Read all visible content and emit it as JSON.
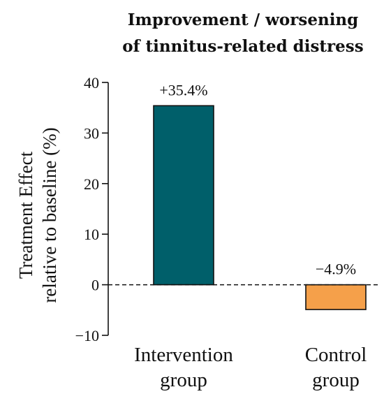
{
  "chart_data": {
    "type": "bar",
    "title_lines": [
      "Improvement / worsening",
      "of tinnitus-related distress"
    ],
    "ylabel_lines": [
      "Treatment Effect",
      "relative to baseline (%)"
    ],
    "ylim": [
      -10,
      40
    ],
    "yticks": [
      -10,
      0,
      10,
      20,
      30,
      40
    ],
    "ytick_labels": [
      "−10",
      "0",
      "10",
      "20",
      "30",
      "40"
    ],
    "baseline": 0,
    "baseline_style": "dashed",
    "categories": [
      {
        "lines": [
          "Intervention",
          "group"
        ]
      },
      {
        "lines": [
          "Control",
          "group"
        ]
      }
    ],
    "values": [
      35.4,
      -4.9
    ],
    "data_labels": [
      "+35.4%",
      "−4.9%"
    ],
    "colors": [
      "#005f6a",
      "#f5a04a"
    ]
  }
}
